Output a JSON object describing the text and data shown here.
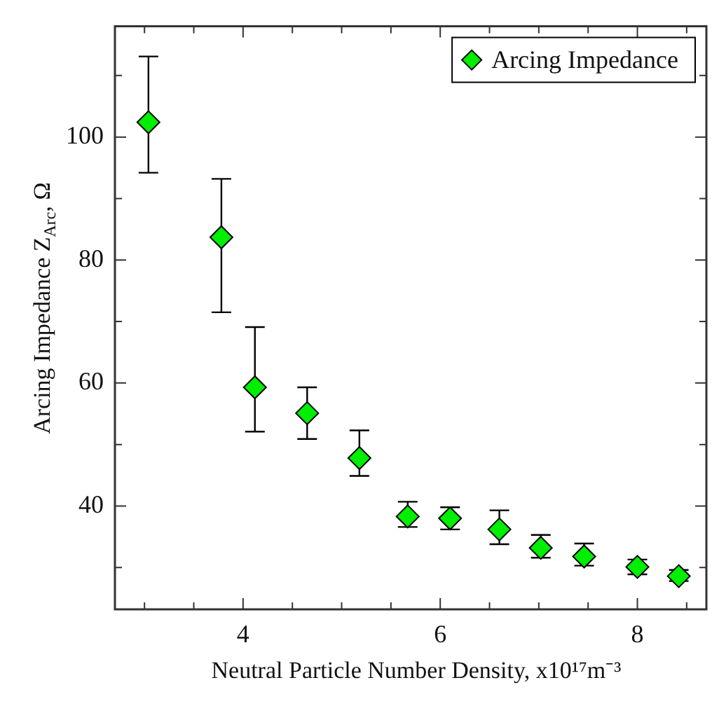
{
  "chart_data": {
    "type": "scatter",
    "xlabel": "Neutral Particle Number Density, x10¹⁷m⁻³",
    "ylabel": "Arcing Impedance Z$_{Arc}$, Ω",
    "x": [
      3.04,
      3.78,
      4.12,
      4.65,
      5.18,
      5.67,
      6.1,
      6.6,
      7.02,
      7.46,
      8.0,
      8.42
    ],
    "series": [
      {
        "name": "Arcing Impedance",
        "color": "#00ee00",
        "values": [
          102.4,
          83.7,
          59.3,
          55.1,
          47.8,
          38.3,
          38.0,
          36.2,
          33.2,
          31.8,
          30.1,
          28.6
        ],
        "errors": [
          [
            94.2,
            113.1
          ],
          [
            71.5,
            93.2
          ],
          [
            52.1,
            69.1
          ],
          [
            50.9,
            59.3
          ],
          [
            44.9,
            52.3
          ],
          [
            36.6,
            40.7
          ],
          [
            36.2,
            39.8
          ],
          [
            33.8,
            39.3
          ],
          [
            31.6,
            35.3
          ],
          [
            30.3,
            33.9
          ],
          [
            28.9,
            31.3
          ],
          [
            27.8,
            29.6
          ]
        ]
      }
    ],
    "xlim": [
      2.7,
      8.7
    ],
    "xticks": [
      {
        "value": 3,
        "label": null
      },
      {
        "value": 3.5,
        "label": null
      },
      4,
      {
        "value": 4.5,
        "label": null
      },
      {
        "value": 5,
        "label": null
      },
      {
        "value": 5.5,
        "label": null
      },
      6,
      {
        "value": 6.5,
        "label": null
      },
      {
        "value": 7,
        "label": null
      },
      {
        "value": 7.5,
        "label": null
      },
      8,
      {
        "value": 8.5,
        "label": null
      }
    ],
    "ylim": [
      23.2,
      118
    ],
    "yticks": [
      {
        "value": 30,
        "label": null
      },
      40,
      {
        "value": 50,
        "label": null
      },
      60,
      {
        "value": 70,
        "label": null
      },
      80,
      {
        "value": 90,
        "label": null
      },
      100,
      {
        "value": 110,
        "label": null
      }
    ],
    "grid": false,
    "legend": "top right",
    "marker": "diamond"
  }
}
